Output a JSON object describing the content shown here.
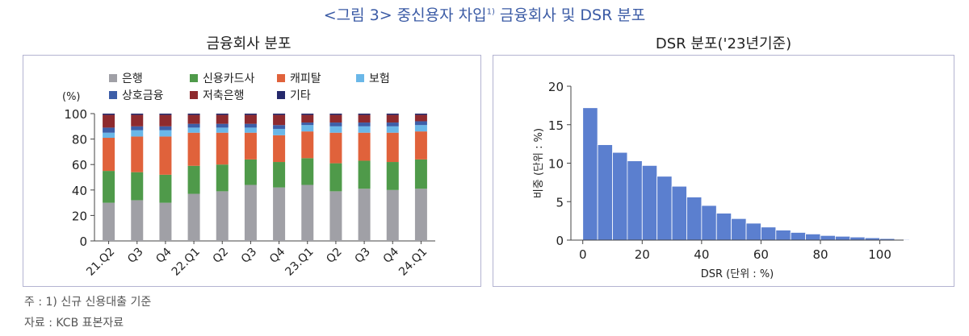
{
  "figure_title": "<그림 3> 중신용자 차입",
  "figure_title_sup": "1)",
  "figure_title_tail": " 금융회사 및 DSR 분포",
  "left_title": "금융회사 분포",
  "right_title": "DSR 분포('23년기준)",
  "notes": {
    "note": "주 : 1) 신규 신용대출 기준",
    "source": "자료 : KCB 표본자료"
  },
  "chart_data": [
    {
      "type": "bar",
      "stacked": true,
      "unit_label": "(%)",
      "categories": [
        "21.Q2",
        "Q3",
        "Q4",
        "22.Q1",
        "Q2",
        "Q3",
        "Q4",
        "23.Q1",
        "Q2",
        "Q3",
        "Q4",
        "24.Q1"
      ],
      "ylim": [
        0,
        100
      ],
      "yticks": [
        0,
        20,
        40,
        60,
        80,
        100
      ],
      "legend_position": "top",
      "series": [
        {
          "name": "은행",
          "color": "#a0a0a6",
          "values": [
            30,
            32,
            30,
            37,
            39,
            44,
            42,
            44,
            39,
            41,
            40,
            41
          ]
        },
        {
          "name": "신용카드사",
          "color": "#4f9a4a",
          "values": [
            25,
            22,
            22,
            22,
            21,
            20,
            20,
            21,
            22,
            22,
            22,
            23
          ]
        },
        {
          "name": "캐피탈",
          "color": "#e0623b",
          "values": [
            26,
            28,
            30,
            26,
            25,
            21,
            21,
            21,
            24,
            22,
            23,
            22
          ]
        },
        {
          "name": "보험",
          "color": "#6ab7e8",
          "values": [
            4,
            5,
            5,
            4,
            4,
            4,
            5,
            5,
            5,
            5,
            5,
            5
          ]
        },
        {
          "name": "상호금융",
          "color": "#3d5ea8",
          "values": [
            4,
            3,
            3,
            3,
            3,
            3,
            3,
            2,
            3,
            3,
            3,
            3
          ]
        },
        {
          "name": "저축은행",
          "color": "#8e2a2e",
          "values": [
            10,
            9,
            9,
            7,
            7,
            7,
            8,
            6,
            6,
            6,
            6,
            5
          ]
        },
        {
          "name": "기타",
          "color": "#25296b",
          "values": [
            1,
            1,
            1,
            1,
            1,
            1,
            1,
            1,
            1,
            1,
            1,
            1
          ]
        }
      ]
    },
    {
      "type": "bar",
      "histogram": true,
      "xlabel": "DSR (단위 : %)",
      "ylabel": "비중 (단위 : %)",
      "xlim": [
        -4,
        108
      ],
      "ylim": [
        0,
        20
      ],
      "xticks": [
        0,
        20,
        40,
        60,
        80,
        100
      ],
      "yticks": [
        0,
        5,
        10,
        15,
        20
      ],
      "bin_width": 5,
      "bin_starts": [
        0,
        5,
        10,
        15,
        20,
        25,
        30,
        35,
        40,
        45,
        50,
        55,
        60,
        65,
        70,
        75,
        80,
        85,
        90,
        95,
        100,
        105
      ],
      "values": [
        17.2,
        12.4,
        11.4,
        10.3,
        9.7,
        8.3,
        7.0,
        5.6,
        4.5,
        3.5,
        2.8,
        2.2,
        1.7,
        1.3,
        1.0,
        0.8,
        0.6,
        0.5,
        0.4,
        0.3,
        0.2,
        0.1
      ],
      "color": "#5b7fcf"
    }
  ]
}
